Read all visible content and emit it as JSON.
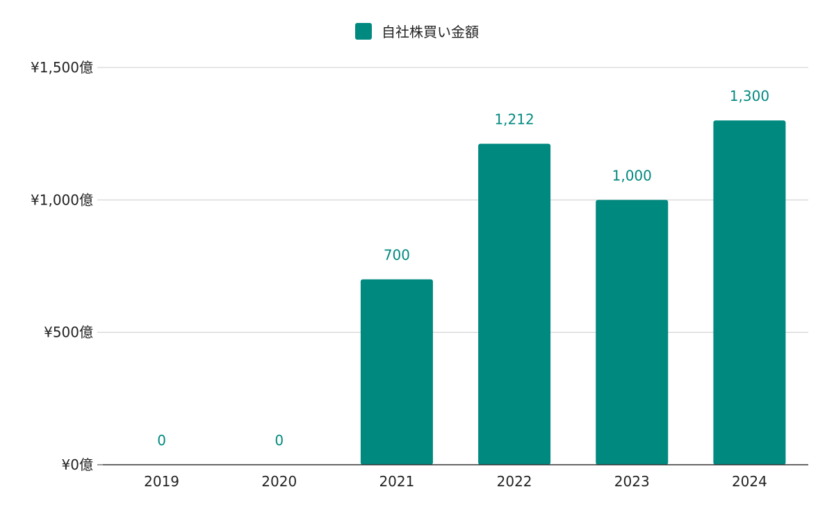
{
  "colors": {
    "bar": "#00897f",
    "grid": "#cccccc",
    "axis": "#333333",
    "text": "#222222"
  },
  "chart_data": {
    "type": "bar",
    "categories": [
      "2019",
      "2020",
      "2021",
      "2022",
      "2023",
      "2024"
    ],
    "series": [
      {
        "name": "自社株買い金額",
        "values": [
          0,
          0,
          700,
          1212,
          1000,
          1300
        ],
        "data_labels": [
          "0",
          "0",
          "700",
          "1,212",
          "1,000",
          "1,300"
        ]
      }
    ],
    "ylim": [
      0,
      1500
    ],
    "yticks": [
      0,
      500,
      1000,
      1500
    ],
    "ytick_labels": [
      "¥0億",
      "¥500億",
      "¥1,000億",
      "¥1,500億"
    ],
    "legend_position": "top",
    "grid": true
  }
}
